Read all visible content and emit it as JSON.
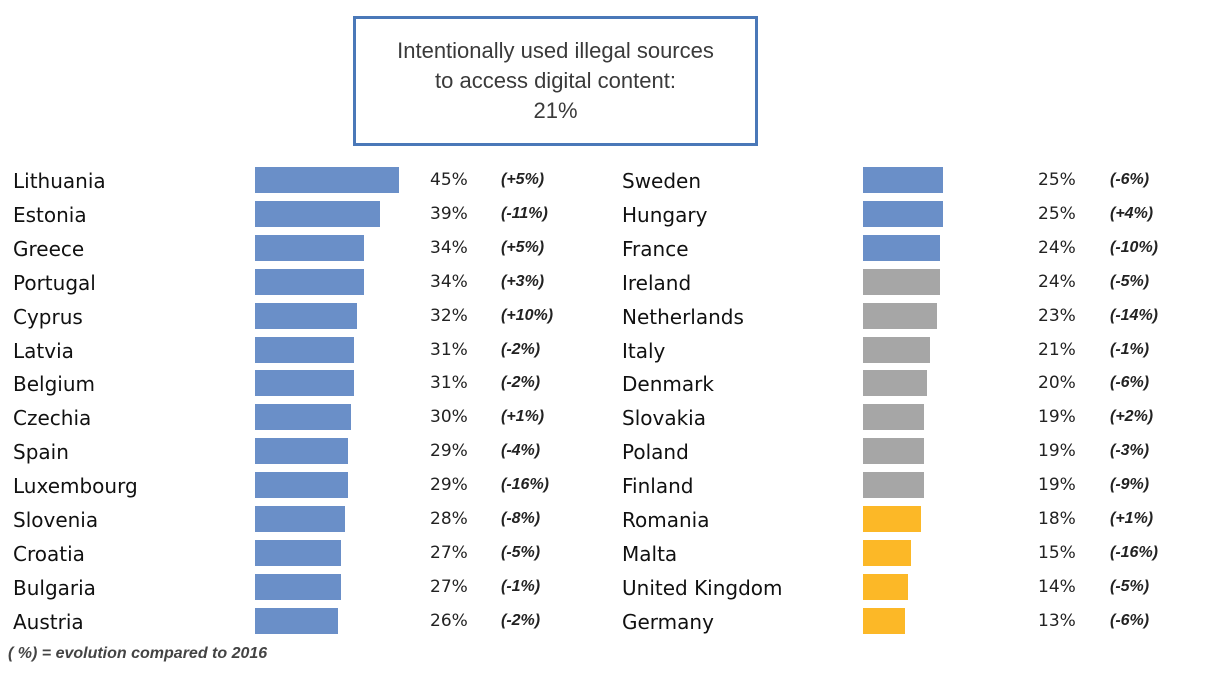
{
  "header": {
    "line1": "Intentionally used illegal sources",
    "line2": "to access digital content:",
    "line3": "21%"
  },
  "footnote": "( %) = evolution compared to 2016",
  "colors": {
    "above": "#6a8fc8",
    "average": "#a6a6a6",
    "below": "#fcb827",
    "box_border": "#4a78b8"
  },
  "chart_data": {
    "type": "bar",
    "orientation": "horizontal",
    "title": "Intentionally used illegal sources to access digital content: 21%",
    "xlabel": "",
    "ylabel": "",
    "xlim": [
      0,
      45
    ],
    "columns": [
      {
        "rows": [
          {
            "country": "Lithuania",
            "value": 45,
            "label": "45%",
            "change": "(+5%)",
            "group": "above"
          },
          {
            "country": "Estonia",
            "value": 39,
            "label": "39%",
            "change": "(-11%)",
            "group": "above"
          },
          {
            "country": "Greece",
            "value": 34,
            "label": "34%",
            "change": "(+5%)",
            "group": "above"
          },
          {
            "country": "Portugal",
            "value": 34,
            "label": "34%",
            "change": "(+3%)",
            "group": "above"
          },
          {
            "country": "Cyprus",
            "value": 32,
            "label": "32%",
            "change": "(+10%)",
            "group": "above"
          },
          {
            "country": "Latvia",
            "value": 31,
            "label": "31%",
            "change": "(-2%)",
            "group": "above"
          },
          {
            "country": "Belgium",
            "value": 31,
            "label": "31%",
            "change": "(-2%)",
            "group": "above"
          },
          {
            "country": "Czechia",
            "value": 30,
            "label": "30%",
            "change": "(+1%)",
            "group": "above"
          },
          {
            "country": "Spain",
            "value": 29,
            "label": "29%",
            "change": "(-4%)",
            "group": "above"
          },
          {
            "country": "Luxembourg",
            "value": 29,
            "label": "29%",
            "change": "(-16%)",
            "group": "above"
          },
          {
            "country": "Slovenia",
            "value": 28,
            "label": "28%",
            "change": "(-8%)",
            "group": "above"
          },
          {
            "country": "Croatia",
            "value": 27,
            "label": "27%",
            "change": "(-5%)",
            "group": "above"
          },
          {
            "country": "Bulgaria",
            "value": 27,
            "label": "27%",
            "change": "(-1%)",
            "group": "above"
          },
          {
            "country": "Austria",
            "value": 26,
            "label": "26%",
            "change": "(-2%)",
            "group": "above"
          }
        ]
      },
      {
        "rows": [
          {
            "country": "Sweden",
            "value": 25,
            "label": "25%",
            "change": "(-6%)",
            "group": "above"
          },
          {
            "country": "Hungary",
            "value": 25,
            "label": "25%",
            "change": "(+4%)",
            "group": "above"
          },
          {
            "country": "France",
            "value": 24,
            "label": "24%",
            "change": "(-10%)",
            "group": "above"
          },
          {
            "country": "Ireland",
            "value": 24,
            "label": "24%",
            "change": "(-5%)",
            "group": "average"
          },
          {
            "country": "Netherlands",
            "value": 23,
            "label": "23%",
            "change": "(-14%)",
            "group": "average"
          },
          {
            "country": "Italy",
            "value": 21,
            "label": "21%",
            "change": "(-1%)",
            "group": "average"
          },
          {
            "country": "Denmark",
            "value": 20,
            "label": "20%",
            "change": "(-6%)",
            "group": "average"
          },
          {
            "country": "Slovakia",
            "value": 19,
            "label": "19%",
            "change": "(+2%)",
            "group": "average"
          },
          {
            "country": "Poland",
            "value": 19,
            "label": "19%",
            "change": "(-3%)",
            "group": "average"
          },
          {
            "country": "Finland",
            "value": 19,
            "label": "19%",
            "change": "(-9%)",
            "group": "average"
          },
          {
            "country": "Romania",
            "value": 18,
            "label": "18%",
            "change": "(+1%)",
            "group": "below"
          },
          {
            "country": "Malta",
            "value": 15,
            "label": "15%",
            "change": "(-16%)",
            "group": "below"
          },
          {
            "country": "United Kingdom",
            "value": 14,
            "label": "14%",
            "change": "(-5%)",
            "group": "below"
          },
          {
            "country": "Germany",
            "value": 13,
            "label": "13%",
            "change": "(-6%)",
            "group": "below"
          }
        ]
      }
    ]
  }
}
